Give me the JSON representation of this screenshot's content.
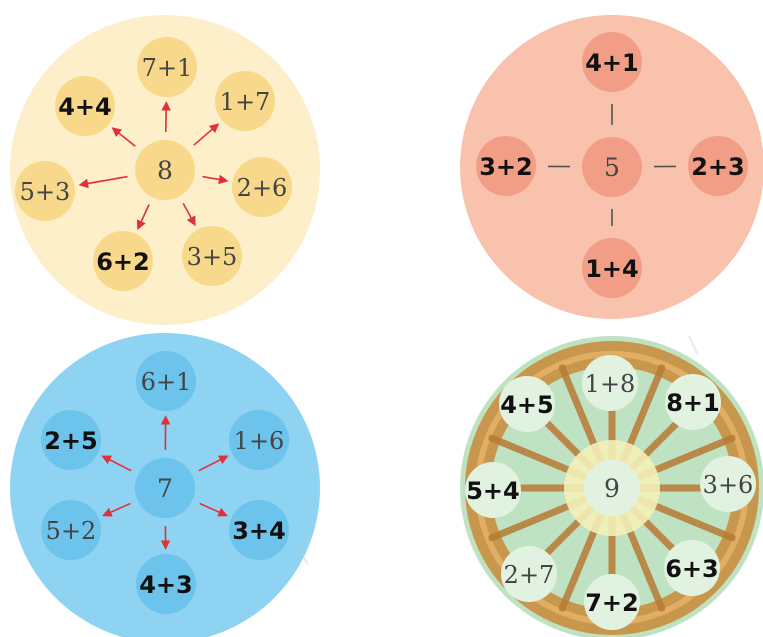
{
  "diagrams": [
    {
      "id": "eight",
      "bg": "#fcefc9",
      "bubble": "#f8d98b",
      "center_label": "8",
      "connector": "arrows",
      "line_color": "#e0303a",
      "items": [
        {
          "label": "7+1",
          "bold": false
        },
        {
          "label": "1+7",
          "bold": false
        },
        {
          "label": "2+6",
          "bold": false
        },
        {
          "label": "3+5",
          "bold": false
        },
        {
          "label": "6+2",
          "bold": true
        },
        {
          "label": "5+3",
          "bold": false
        },
        {
          "label": "4+4",
          "bold": true
        }
      ]
    },
    {
      "id": "five",
      "bg": "#f9c2ad",
      "bubble": "#f29e86",
      "center_label": "5",
      "connector": "lines",
      "line_color": "#555555",
      "items": [
        {
          "label": "4+1",
          "bold": true
        },
        {
          "label": "2+3",
          "bold": true
        },
        {
          "label": "1+4",
          "bold": true
        },
        {
          "label": "3+2",
          "bold": true
        }
      ]
    },
    {
      "id": "seven",
      "bg": "#8fd3f2",
      "bubble": "#6cc3ec",
      "center_label": "7",
      "connector": "arrows",
      "line_color": "#e0303a",
      "items": [
        {
          "label": "6+1",
          "bold": false
        },
        {
          "label": "1+6",
          "bold": false
        },
        {
          "label": "3+4",
          "bold": true
        },
        {
          "label": "4+3",
          "bold": true
        },
        {
          "label": "5+2",
          "bold": false
        },
        {
          "label": "2+5",
          "bold": true
        }
      ]
    },
    {
      "id": "nine",
      "bg": "#bfe3c2",
      "bubble": "#e2f2e1",
      "center_label": "9",
      "connector": "wheel",
      "line_color": "#c98a3a",
      "items": [
        {
          "label": "1+8",
          "bold": false
        },
        {
          "label": "8+1",
          "bold": true
        },
        {
          "label": "3+6",
          "bold": false
        },
        {
          "label": "6+3",
          "bold": true
        },
        {
          "label": "7+2",
          "bold": true
        },
        {
          "label": "2+7",
          "bold": false
        },
        {
          "label": "5+4",
          "bold": true
        },
        {
          "label": "4+5",
          "bold": true
        }
      ]
    }
  ]
}
